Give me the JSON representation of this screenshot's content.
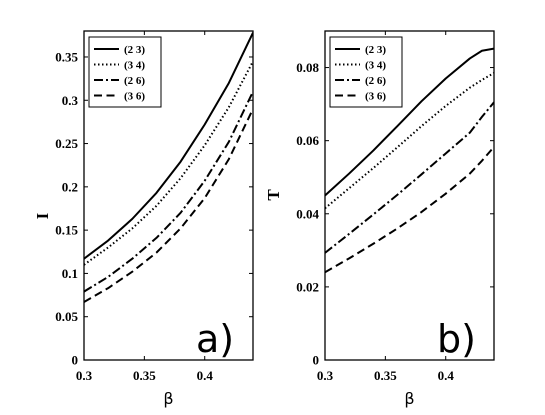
{
  "chart_data": [
    {
      "type": "line",
      "panel_label": "a)",
      "xlabel": "β",
      "ylabel": "I",
      "xlim": [
        0.3,
        0.44
      ],
      "ylim": [
        0,
        0.38
      ],
      "xticks": [
        "0.3",
        "0.35",
        "0.4"
      ],
      "yticks": [
        "0",
        "0.05",
        "0.1",
        "0.15",
        "0.2",
        "0.25",
        "0.3",
        "0.35"
      ],
      "legend_position": "top-left",
      "grid": false,
      "x": [
        0.3,
        0.32,
        0.34,
        0.36,
        0.38,
        0.4,
        0.42,
        0.44
      ],
      "series": [
        {
          "name": "(2 3)",
          "style": "solid",
          "values": [
            0.117,
            0.138,
            0.163,
            0.193,
            0.229,
            0.272,
            0.32,
            0.378
          ]
        },
        {
          "name": "(3 4)",
          "style": "dotted",
          "values": [
            0.11,
            0.13,
            0.152,
            0.178,
            0.21,
            0.248,
            0.292,
            0.345
          ]
        },
        {
          "name": "(2 6)",
          "style": "dashdot",
          "values": [
            0.079,
            0.096,
            0.117,
            0.141,
            0.17,
            0.207,
            0.252,
            0.31
          ]
        },
        {
          "name": "(3 6)",
          "style": "dashed",
          "values": [
            0.067,
            0.083,
            0.102,
            0.124,
            0.152,
            0.187,
            0.232,
            0.29
          ]
        }
      ]
    },
    {
      "type": "line",
      "panel_label": "b)",
      "xlabel": "β",
      "ylabel": "T",
      "xlim": [
        0.3,
        0.44
      ],
      "ylim": [
        0,
        0.09
      ],
      "xticks": [
        "0.3",
        "0.35",
        "0.4"
      ],
      "yticks": [
        "0",
        "0.02",
        "0.04",
        "0.06",
        "0.08"
      ],
      "legend_position": "top-left",
      "grid": false,
      "x": [
        0.3,
        0.32,
        0.34,
        0.36,
        0.38,
        0.4,
        0.42,
        0.43,
        0.44
      ],
      "series": [
        {
          "name": "(2 3)",
          "style": "solid",
          "values": [
            0.045,
            0.051,
            0.0573,
            0.064,
            0.0708,
            0.077,
            0.0825,
            0.0846,
            0.0852
          ]
        },
        {
          "name": "(3 4)",
          "style": "dotted",
          "values": [
            0.0415,
            0.047,
            0.0525,
            0.0582,
            0.064,
            0.0695,
            0.0745,
            0.0766,
            0.0785
          ]
        },
        {
          "name": "(2 6)",
          "style": "dashdot",
          "values": [
            0.0293,
            0.0345,
            0.0398,
            0.0452,
            0.0508,
            0.0565,
            0.0622,
            0.0665,
            0.0705
          ]
        },
        {
          "name": "(3 6)",
          "style": "dashed",
          "values": [
            0.024,
            0.0278,
            0.0318,
            0.036,
            0.0405,
            0.0455,
            0.051,
            0.0545,
            0.0583
          ]
        }
      ]
    }
  ]
}
